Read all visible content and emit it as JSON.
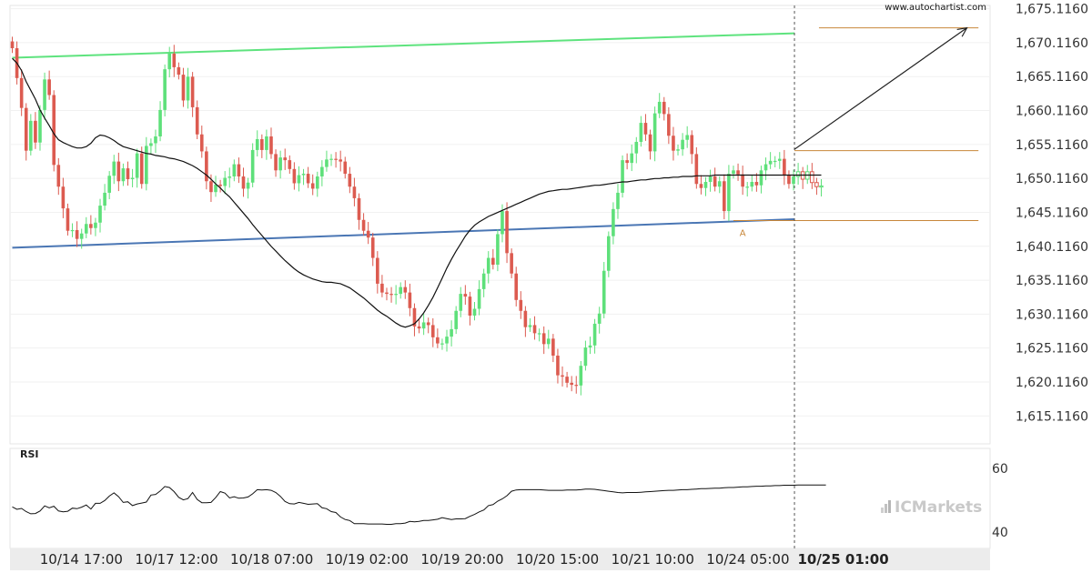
{
  "watermark": "www.autochartist.com",
  "brand": {
    "text": "ICMarkets",
    "icon": "bar-chart-icon"
  },
  "colors": {
    "up": "#5ee07a",
    "down": "#dc5b50",
    "resistance": "#5ee37e",
    "support": "#4a76b4",
    "level": "#c8873a",
    "ma": "#111111",
    "rsi": "#111111",
    "arrow": "#222222"
  },
  "chart_data": [
    {
      "type": "candlestick",
      "title": "",
      "xlabel": "",
      "ylabel": "",
      "y_tick_labels": [
        "1,615.1160",
        "1,620.1160",
        "1,625.1160",
        "1,630.1160",
        "1,635.1160",
        "1,640.1160",
        "1,645.1160",
        "1,650.1160",
        "1,655.1160",
        "1,660.1160",
        "1,665.1160",
        "1,670.1160",
        "1,675.1160"
      ],
      "y_ticks": [
        1615.116,
        1620.116,
        1625.116,
        1630.116,
        1635.116,
        1640.116,
        1645.116,
        1650.116,
        1655.116,
        1660.116,
        1665.116,
        1670.116,
        1675.116
      ],
      "ylim": [
        1611.0,
        1675.6
      ],
      "x_tick_labels": [
        "10/14 17:00",
        "10/17 12:00",
        "10/18 07:00",
        "10/19 02:00",
        "10/19 20:00",
        "10/20 15:00",
        "10/21 10:00",
        "10/24 05:00",
        "10/25 01:00"
      ],
      "x_tick_positions": [
        4.7,
        25.3,
        45.9,
        66.5,
        87.1,
        107.7,
        128.3,
        148.9,
        169.5
      ],
      "highlight_tick": "10/25 01:00",
      "bar_count": 176,
      "close": [
        1669.3,
        1664.9,
        1660.5,
        1654.2,
        1658.6,
        1655.4,
        1660.2,
        1664.7,
        1662.4,
        1652.1,
        1648.9,
        1645.7,
        1642.4,
        1642.5,
        1641.2,
        1642.0,
        1643.4,
        1642.8,
        1643.6,
        1646.1,
        1648.0,
        1650.5,
        1652.6,
        1649.7,
        1651.6,
        1650.0,
        1650.2,
        1653.8,
        1649.3,
        1654.9,
        1655.3,
        1656.3,
        1660.2,
        1666.2,
        1668.5,
        1666.5,
        1665.4,
        1661.6,
        1665.1,
        1660.6,
        1656.6,
        1654.1,
        1649.7,
        1648.1,
        1649.2,
        1649.0,
        1650.2,
        1650.4,
        1652.2,
        1650.4,
        1648.6,
        1649.5,
        1654.3,
        1655.9,
        1654.3,
        1656.3,
        1653.7,
        1651.3,
        1653.2,
        1652.8,
        1651.5,
        1649.4,
        1650.6,
        1650.8,
        1649.4,
        1648.6,
        1650.4,
        1651.8,
        1652.9,
        1653.0,
        1652.9,
        1652.6,
        1650.8,
        1648.9,
        1647.2,
        1644.0,
        1642.4,
        1641.4,
        1638.4,
        1634.6,
        1633.3,
        1633.1,
        1633.0,
        1633.1,
        1634.1,
        1633.3,
        1631.0,
        1628.3,
        1628.0,
        1628.9,
        1628.5,
        1626.7,
        1625.8,
        1625.8,
        1626.8,
        1627.9,
        1630.6,
        1633.1,
        1632.7,
        1629.9,
        1630.9,
        1633.8,
        1636.1,
        1638.4,
        1637.4,
        1641.9,
        1645.3,
        1639.1,
        1636.1,
        1632.2,
        1630.6,
        1628.2,
        1628.5,
        1627.3,
        1627.3,
        1625.7,
        1626.5,
        1624.0,
        1621.1,
        1620.9,
        1620.0,
        1619.7,
        1619.6,
        1622.5,
        1625.2,
        1625.5,
        1628.7,
        1630.2,
        1636.5,
        1641.6,
        1645.6,
        1648.0,
        1652.8,
        1652.4,
        1653.8,
        1655.5,
        1658.3,
        1656.6,
        1654.1,
        1659.7,
        1661.4,
        1659.6,
        1656.4,
        1654.2,
        1654.4,
        1655.8,
        1656.5,
        1653.7,
        1649.3,
        1648.7,
        1649.6,
        1650.4,
        1648.9,
        1649.7,
        1645.3,
        1650.8,
        1651.3,
        1650.7,
        1648.9,
        1648.9,
        1649.6,
        1649.1,
        1651.3,
        1652.2,
        1652.7,
        1652.7,
        1653.0,
        1650.6,
        1649.3,
        1650.4,
        1651.1,
        1650.0,
        1651.1,
        1649.5,
        1648.9,
        1649.0
      ],
      "moving_average": [
        1667.8,
        1667.1,
        1666.0,
        1664.4,
        1663.1,
        1661.8,
        1660.2,
        1659.0,
        1657.9,
        1656.7,
        1655.8,
        1655.4,
        1655.1,
        1654.8,
        1654.6,
        1654.6,
        1654.8,
        1655.3,
        1656.1,
        1656.5,
        1656.4,
        1656.1,
        1655.7,
        1655.2,
        1654.8,
        1654.6,
        1654.4,
        1654.2,
        1654.0,
        1653.8,
        1653.7,
        1653.5,
        1653.4,
        1653.3,
        1653.1,
        1653.0,
        1652.8,
        1652.6,
        1652.3,
        1652.0,
        1651.6,
        1651.1,
        1650.6,
        1650.0,
        1649.3,
        1648.7,
        1648.0,
        1647.4,
        1646.6,
        1645.8,
        1645.0,
        1644.2,
        1643.3,
        1642.5,
        1641.7,
        1640.9,
        1640.1,
        1639.4,
        1638.7,
        1638.0,
        1637.4,
        1636.8,
        1636.3,
        1635.9,
        1635.6,
        1635.3,
        1635.1,
        1634.9,
        1634.8,
        1634.8,
        1634.7,
        1634.6,
        1634.3,
        1634.0,
        1633.5,
        1633.0,
        1632.5,
        1631.9,
        1631.3,
        1630.7,
        1630.2,
        1629.8,
        1629.3,
        1628.8,
        1628.4,
        1628.2,
        1628.4,
        1628.7,
        1629.4,
        1630.3,
        1631.4,
        1632.6,
        1634.0,
        1635.4,
        1636.9,
        1638.2,
        1639.4,
        1640.5,
        1641.6,
        1642.5,
        1643.2,
        1643.7,
        1644.1,
        1644.5,
        1644.8,
        1645.1,
        1645.4,
        1645.7,
        1646.0,
        1646.3,
        1646.6,
        1646.9,
        1647.2,
        1647.5,
        1647.8,
        1648.0,
        1648.2,
        1648.3,
        1648.4,
        1648.5,
        1648.5,
        1648.6,
        1648.7,
        1648.8,
        1648.9,
        1649.0,
        1649.1,
        1649.1,
        1649.2,
        1649.3,
        1649.4,
        1649.5,
        1649.6,
        1649.6,
        1649.7,
        1649.8,
        1649.9,
        1649.9,
        1650.0,
        1650.1,
        1650.1,
        1650.2,
        1650.2,
        1650.3,
        1650.3,
        1650.4,
        1650.4,
        1650.4,
        1650.5,
        1650.5,
        1650.5,
        1650.5,
        1650.6,
        1650.6,
        1650.6,
        1650.6,
        1650.6,
        1650.6,
        1650.6,
        1650.6,
        1650.6,
        1650.6,
        1650.6,
        1650.6,
        1650.6,
        1650.6,
        1650.6,
        1650.6,
        1650.6,
        1650.6,
        1650.6,
        1650.6,
        1650.6,
        1650.6,
        1650.6,
        1650.6
      ],
      "trend_lines": {
        "resistance": {
          "from": [
            0,
            1667.9
          ],
          "to": [
            169.2,
            1671.5
          ]
        },
        "support": {
          "from": [
            0,
            1639.9
          ],
          "to": [
            169.2,
            1644.1
          ]
        }
      },
      "levels": {
        "upper": {
          "value": 1672.3,
          "x_range": [
            174.5,
            209.0
          ]
        },
        "entry": {
          "value": 1654.2,
          "x_range": [
            169.2,
            209.0
          ]
        },
        "lower": {
          "value": 1643.9,
          "x_range": [
            156.0,
            209.0
          ]
        }
      },
      "marker": {
        "label": "A",
        "x": 158.0,
        "y": 1643.2
      },
      "forecast_arrow": {
        "from": [
          169.2,
          1654.4
        ],
        "to": [
          206.5,
          1672.3
        ]
      },
      "current_time_x": 169.2
    },
    {
      "type": "line",
      "title": "RSI",
      "y_tick_labels": [
        "60",
        "40"
      ],
      "y_ticks": [
        60,
        40
      ],
      "ylim": [
        34.8,
        66.3
      ],
      "values": [
        47.9,
        47.1,
        47.4,
        46.4,
        45.7,
        45.8,
        46.6,
        48.2,
        47.6,
        48.1,
        46.6,
        46.3,
        46.5,
        47.5,
        47.3,
        47.8,
        48.5,
        47.2,
        49.0,
        49.0,
        49.9,
        51.3,
        52.3,
        51.1,
        49.3,
        49.5,
        48.3,
        48.8,
        49.1,
        49.4,
        51.6,
        51.8,
        52.9,
        54.3,
        54.0,
        52.7,
        50.9,
        50.1,
        50.5,
        52.4,
        50.2,
        49.2,
        49.2,
        49.3,
        50.8,
        52.7,
        52.2,
        50.7,
        51.1,
        50.6,
        50.7,
        51.0,
        52.0,
        53.3,
        53.2,
        53.3,
        53.1,
        52.4,
        51.2,
        49.6,
        48.9,
        48.8,
        49.3,
        49.0,
        48.7,
        48.8,
        48.9,
        47.6,
        47.3,
        46.4,
        46.1,
        44.7,
        43.9,
        43.6,
        42.6,
        42.6,
        42.6,
        42.5,
        42.5,
        42.5,
        42.5,
        42.4,
        42.4,
        42.6,
        42.6,
        42.8,
        43.3,
        43.2,
        43.3,
        43.6,
        43.6,
        43.8,
        44.0,
        44.5,
        44.2,
        43.9,
        44.1,
        44.1,
        44.2,
        44.9,
        45.5,
        46.3,
        46.9,
        48.3,
        48.6,
        49.7,
        50.4,
        51.4,
        52.8,
        53.2,
        53.3,
        53.3,
        53.3,
        53.3,
        53.3,
        53.2,
        53.1,
        53.1,
        53.1,
        53.1,
        53.2,
        53.2,
        53.2,
        53.3,
        53.5,
        53.5,
        53.4,
        53.2,
        53.0,
        52.8,
        52.6,
        52.4,
        52.3,
        52.4,
        52.4,
        52.4,
        52.5,
        52.6,
        52.7,
        52.8,
        52.9,
        53.0,
        53.1,
        53.1,
        53.2,
        53.3,
        53.3,
        53.4,
        53.5,
        53.6,
        53.6,
        53.7,
        53.8,
        53.8,
        53.9,
        54.0,
        54.0,
        54.1,
        54.2,
        54.2,
        54.3,
        54.4,
        54.4,
        54.5,
        54.5,
        54.6,
        54.6,
        54.7,
        54.7,
        54.7,
        54.8,
        54.8,
        54.8,
        54.8,
        54.8,
        54.8,
        54.8
      ]
    }
  ]
}
